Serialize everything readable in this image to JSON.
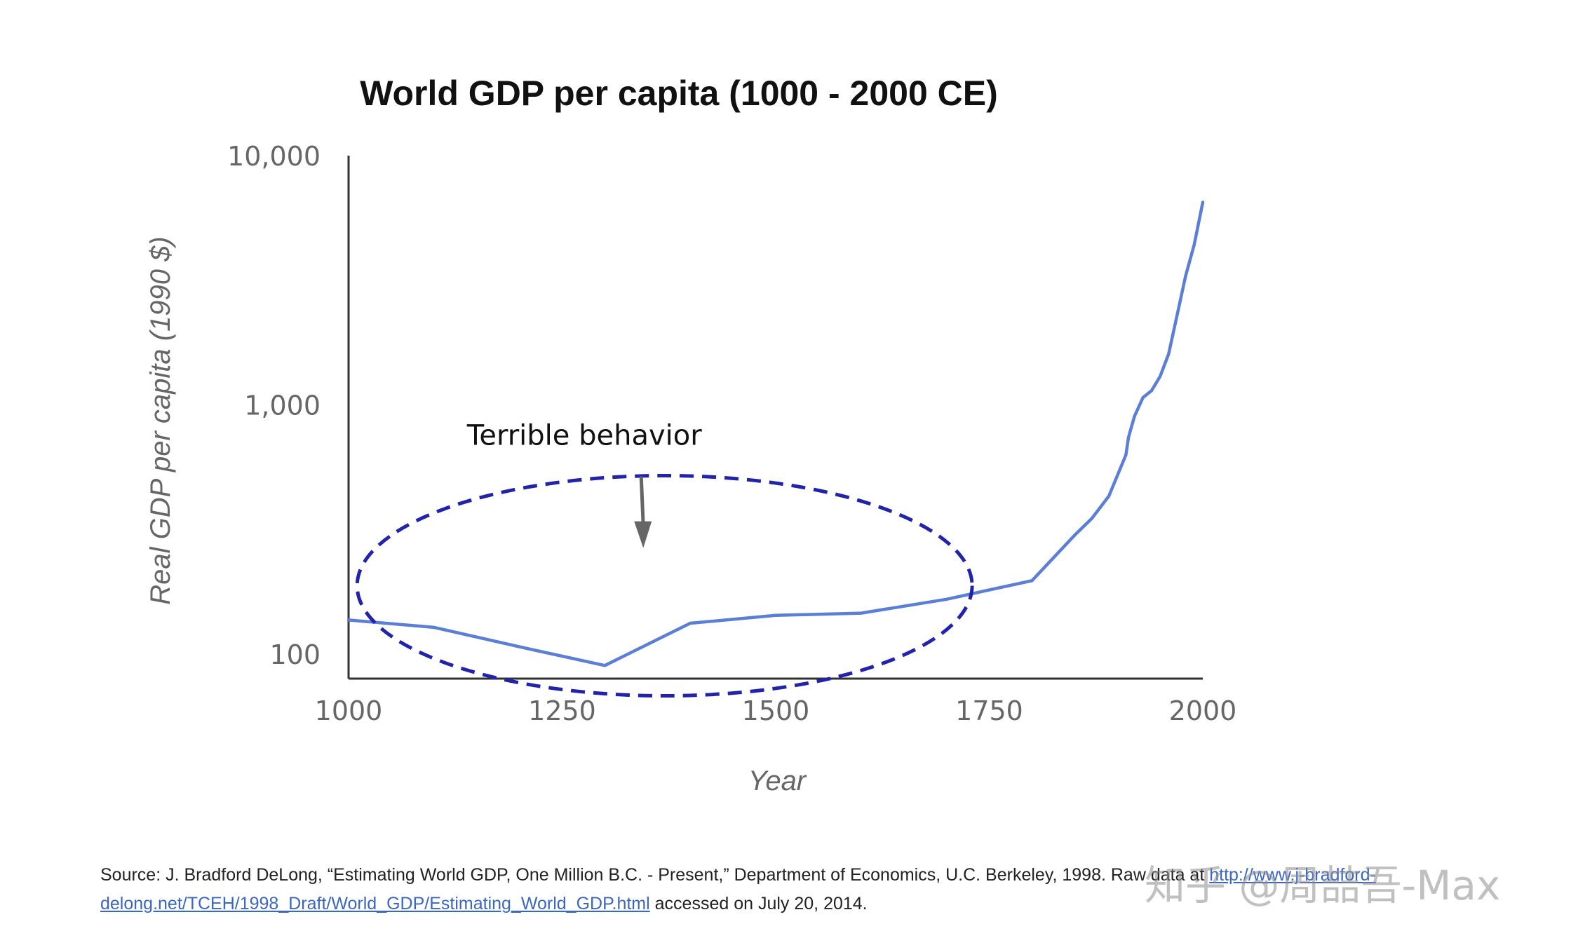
{
  "chart_data": {
    "type": "line",
    "title": "World GDP per capita (1000 - 2000 CE)",
    "xlabel": "Year",
    "ylabel": "Real GDP per capita (1990 $)",
    "xlim": [
      1000,
      2000
    ],
    "ylim": [
      80,
      10000
    ],
    "yscale": "log",
    "x_ticks": [
      "1000",
      "1250",
      "1500",
      "1750",
      "2000"
    ],
    "y_ticks": [
      {
        "value": 10000,
        "label": "10,000"
      },
      {
        "value": 1000,
        "label": "1,000"
      },
      {
        "value": 100,
        "label": "100"
      }
    ],
    "series": [
      {
        "name": "World GDP per capita",
        "color": "#5b7fd6",
        "x": [
          1000,
          1100,
          1200,
          1300,
          1400,
          1500,
          1600,
          1700,
          1800,
          1850,
          1870,
          1890,
          1910,
          1913,
          1920,
          1930,
          1940,
          1950,
          1960,
          1970,
          1980,
          1990,
          2000
        ],
        "y": [
          137,
          128,
          107,
          90,
          133,
          143,
          146,
          166,
          197,
          300,
          350,
          430,
          630,
          740,
          900,
          1070,
          1140,
          1300,
          1600,
          2300,
          3300,
          4400,
          6500
        ]
      }
    ],
    "annotations": [
      {
        "text": "Terrible behavior",
        "shape": "dashed-ellipse",
        "color": "#2222aa",
        "x_range": [
          1010,
          1730
        ],
        "y_range": [
          68,
          520
        ],
        "arrow_at": [
          1345,
          270
        ]
      }
    ],
    "grid": false
  },
  "source": {
    "text_before_link": "Source: J. Bradford DeLong, “Estimating World GDP, One Million B.C. - Present,” Department of Economics, U.C. Berkeley, 1998. Raw data at ",
    "link_text": "http://www.j-bradford-delong.net/TCEH/1998_Draft/World_GDP/Estimating_World_GDP.html",
    "text_after_link": " accessed on July 20, 2014."
  },
  "watermark": "知乎 @周喆吾-Max",
  "colors": {
    "line": "#5b7fd6",
    "ellipse": "#2222aa",
    "axis": "#333333",
    "arrow": "#666666"
  }
}
